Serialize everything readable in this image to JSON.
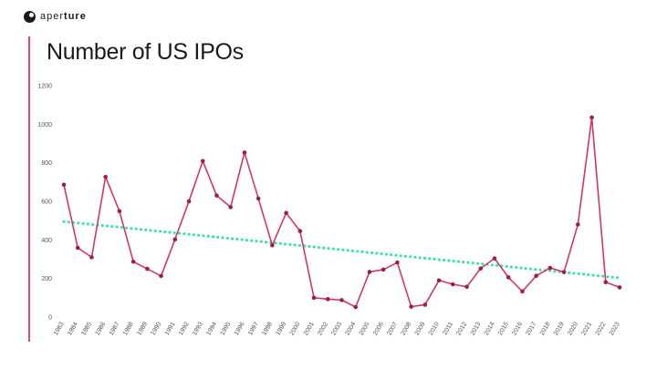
{
  "brand": {
    "prefix": "aper",
    "suffix": "ture",
    "icon": "aperture-logo-icon"
  },
  "title": "Number of US IPOs",
  "colors": {
    "series": "#d6336c",
    "point": "#9c1f47",
    "trend": "#2ee3b0",
    "accent": "#e0467a",
    "text": "#1a1a1a"
  },
  "chart_data": {
    "type": "line",
    "title": "Number of US IPOs",
    "xlabel": "",
    "ylabel": "",
    "ylim": [
      0,
      1200
    ],
    "yticks": [
      0,
      200,
      400,
      600,
      800,
      1000,
      1200
    ],
    "grid": false,
    "categories": [
      "1983",
      "1984",
      "1985",
      "1986",
      "1987",
      "1988",
      "1989",
      "1990",
      "1991",
      "1992",
      "1993",
      "1994",
      "1995",
      "1996",
      "1997",
      "1998",
      "1999",
      "2000",
      "2001",
      "2002",
      "2003",
      "2004",
      "2005",
      "2006",
      "2007",
      "2008",
      "2009",
      "2010",
      "2011",
      "2012",
      "2013",
      "2014",
      "2015",
      "2016",
      "2017",
      "2018",
      "2019",
      "2020",
      "2021",
      "2022",
      "2023"
    ],
    "series": [
      {
        "name": "",
        "values": [
          686,
          359,
          310,
          727,
          549,
          287,
          250,
          213,
          403,
          600,
          809,
          630,
          570,
          853,
          615,
          372,
          540,
          446,
          100,
          93,
          88,
          52,
          234,
          246,
          283,
          54,
          64,
          190,
          170,
          157,
          252,
          304,
          206,
          133,
          214,
          255,
          233,
          480,
          1035,
          181,
          154
        ]
      }
    ],
    "trendline": {
      "style": "dotted",
      "start": 495,
      "end": 203
    }
  }
}
